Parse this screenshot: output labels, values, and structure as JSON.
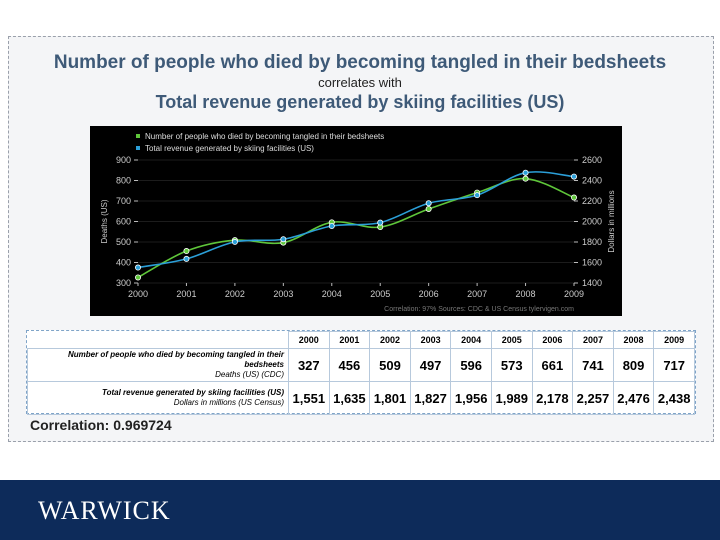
{
  "titles": {
    "line1": "Number of people who died by becoming tangled in their bedsheets",
    "line2": "correlates with",
    "line3": "Total revenue generated by skiing facilities (US)"
  },
  "colors": {
    "series1": "#5fc63a",
    "series2": "#2b9fd8",
    "title": "#3e5a78",
    "footer": "#0d2b5a"
  },
  "chart_data": {
    "type": "line",
    "x": [
      2000,
      2001,
      2002,
      2003,
      2004,
      2005,
      2006,
      2007,
      2008,
      2009
    ],
    "series": [
      {
        "name": "Number of people who died by becoming tangled in their bedsheets",
        "axis": "left",
        "values": [
          327,
          456,
          509,
          497,
          596,
          573,
          661,
          741,
          809,
          717
        ]
      },
      {
        "name": "Total revenue generated by skiing facilities (US)",
        "axis": "right",
        "values": [
          1551,
          1635,
          1801,
          1827,
          1956,
          1989,
          2178,
          2257,
          2476,
          2438
        ]
      }
    ],
    "ylabel_left": "Deaths (US)",
    "ylabel_right": "Dollars in millions",
    "ylim_left": [
      300,
      900
    ],
    "ylim_right": [
      1400,
      2600
    ],
    "yticks_left": [
      300,
      400,
      500,
      600,
      700,
      800,
      900
    ],
    "yticks_right": [
      1400,
      1600,
      1800,
      2000,
      2200,
      2400,
      2600
    ],
    "footer_text": "Correlation: 97%     Sources: CDC & US Census     tylervigen.com",
    "legend_position": "top-left"
  },
  "table": {
    "years": [
      "2000",
      "2001",
      "2002",
      "2003",
      "2004",
      "2005",
      "2006",
      "2007",
      "2008",
      "2009"
    ],
    "row1_label": "Number of people who died by becoming tangled in their bedsheets",
    "row1_sub": "Deaths (US) (CDC)",
    "row1_values": [
      "327",
      "456",
      "509",
      "497",
      "596",
      "573",
      "661",
      "741",
      "809",
      "717"
    ],
    "row2_label": "Total revenue generated by skiing facilities (US)",
    "row2_sub": "Dollars in millions (US Census)",
    "row2_values": [
      "1,551",
      "1,635",
      "1,801",
      "1,827",
      "1,956",
      "1,989",
      "2,178",
      "2,257",
      "2,476",
      "2,438"
    ]
  },
  "correlation_text": "Correlation: 0.969724",
  "footer": {
    "logo_text": "WARWICK"
  }
}
